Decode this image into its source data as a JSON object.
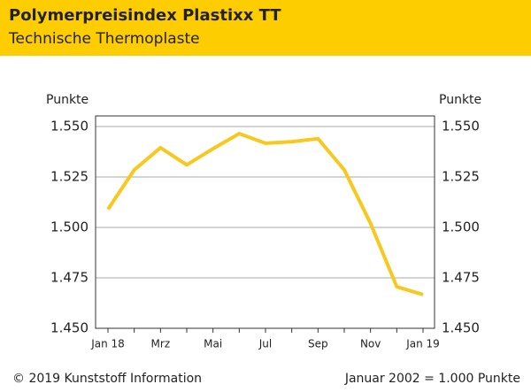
{
  "chart_data": {
    "type": "line",
    "title": "Polymerpreisindex Plastixx TT",
    "subtitle": "Technische Thermoplaste",
    "y_label": "Punkte",
    "source": "© 2019 Kunststoff Information",
    "note": "Januar 2002 = 1.000 Punkte",
    "categories": [
      "Jan 18",
      null,
      "Mrz",
      null,
      "Mai",
      null,
      "Jul",
      null,
      "Sep",
      null,
      "Nov",
      null,
      "Jan 19"
    ],
    "series": [
      {
        "name": "Plastixx TT",
        "color": "#f7c81e",
        "values": [
          1509,
          1528.5,
          1539.5,
          1531,
          1539,
          1546.5,
          1541.7,
          1542.5,
          1544,
          1528.5,
          1502,
          1470.6,
          1466.7
        ]
      }
    ],
    "ylim": [
      1450,
      1550
    ],
    "yticks": [
      {
        "value": 1450,
        "label": "1.450"
      },
      {
        "value": 1475,
        "label": "1.475"
      },
      {
        "value": 1500,
        "label": "1.500"
      },
      {
        "value": 1525,
        "label": "1.525"
      },
      {
        "value": 1550,
        "label": "1.550"
      }
    ],
    "grid": true
  }
}
